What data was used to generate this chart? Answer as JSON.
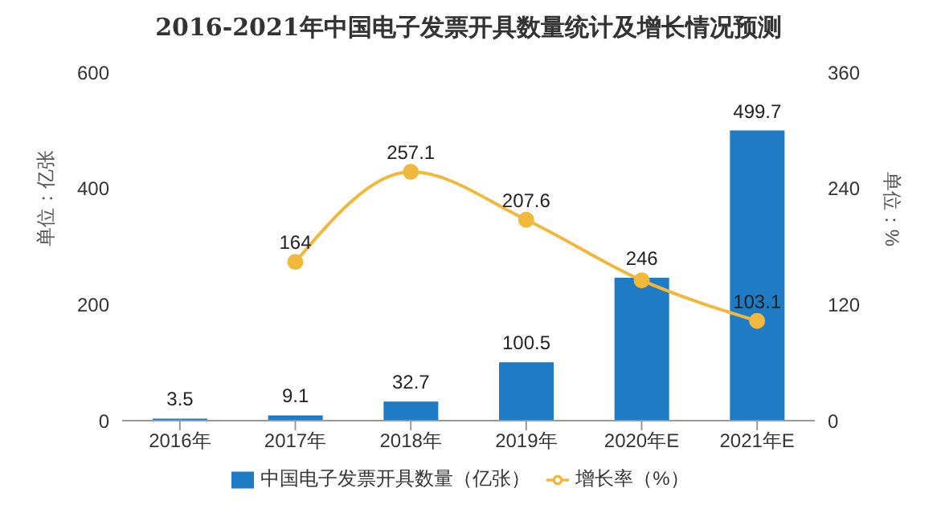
{
  "chart_data": {
    "type": "bar",
    "title": "2016-2021年中国电子发票开具数量统计及增长情况预测",
    "categories": [
      "2016年",
      "2017年",
      "2018年",
      "2019年",
      "2020年E",
      "2021年E"
    ],
    "series": [
      {
        "name": "中国电子发票开具数量（亿张）",
        "color": "#1f7bc4",
        "values": [
          3.5,
          9.1,
          32.7,
          100.5,
          246,
          499.7
        ],
        "value_labels": [
          "3.5",
          "9.1",
          "32.7",
          "100.5",
          "246",
          "499.7"
        ]
      },
      {
        "name": "增长率（%）",
        "type": "line",
        "axis": "y2",
        "color": "#f0b83c",
        "values": [
          null,
          164,
          257.1,
          207.6,
          145,
          103.1
        ],
        "value_labels": [
          null,
          "164",
          "257.1",
          "207.6",
          null,
          "103.1"
        ]
      }
    ],
    "ylabel": "单位：亿张",
    "y2label": "单位：%",
    "ylim": [
      0,
      600
    ],
    "yticks": [
      0,
      200,
      400,
      600
    ],
    "y2lim": [
      0,
      360
    ],
    "y2ticks": [
      0,
      120,
      240,
      360
    ],
    "legend": "bottom",
    "marker": "circle",
    "grid": false
  }
}
